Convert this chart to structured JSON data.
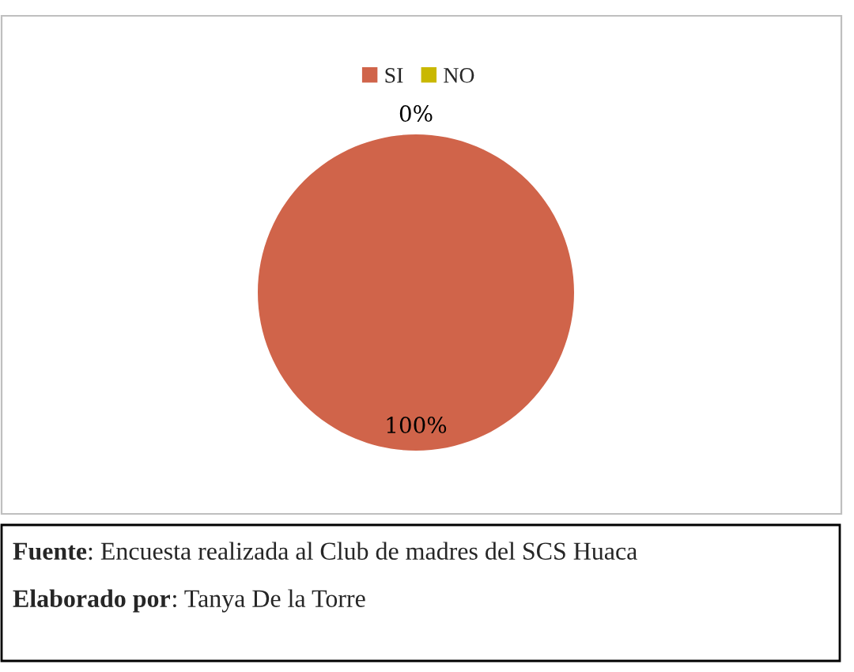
{
  "chart_data": {
    "type": "pie",
    "categories": [
      "SI",
      "NO"
    ],
    "values": [
      100,
      0
    ],
    "colors": [
      "#d0644a",
      "#c9b800"
    ],
    "value_labels": [
      "100%",
      "0%"
    ],
    "legend": "top",
    "annotations": [
      "Fuente: Encuesta realizada al Club de madres del SCS Huaca",
      "Elaborado por: Tanya De la Torre"
    ]
  }
}
